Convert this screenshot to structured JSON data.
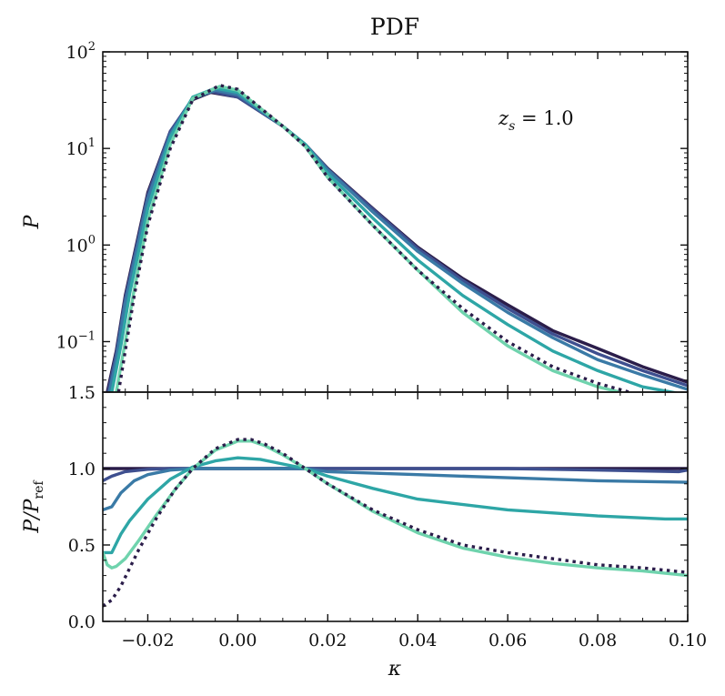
{
  "chart_data": [
    {
      "type": "line",
      "panel": "top",
      "title": "PDF",
      "ylabel": "P",
      "xlabel": "",
      "yscale": "log",
      "xlim": [
        -0.03,
        0.1
      ],
      "ylim": [
        0.03,
        100
      ],
      "yticks": [
        {
          "value": 0.1,
          "base": "10",
          "exp": "−1"
        },
        {
          "value": 1,
          "base": "10",
          "exp": "0"
        },
        {
          "value": 10,
          "base": "10",
          "exp": "1"
        },
        {
          "value": 100,
          "base": "10",
          "exp": "2"
        }
      ],
      "annotation": {
        "main": "z",
        "sub": "s",
        "rest": " = 1.0"
      },
      "series": [
        {
          "color": "#2b1d4a",
          "style": "solid",
          "x": [
            -0.029,
            -0.027,
            -0.025,
            -0.02,
            -0.015,
            -0.01,
            -0.006,
            0.0,
            0.01,
            0.015,
            0.02,
            0.03,
            0.04,
            0.05,
            0.06,
            0.07,
            0.08,
            0.09,
            0.1
          ],
          "y": [
            0.03,
            0.08,
            0.3,
            3.5,
            15,
            32,
            38,
            34,
            17,
            11,
            6.2,
            2.4,
            0.95,
            0.45,
            0.24,
            0.13,
            0.085,
            0.055,
            0.038
          ]
        },
        {
          "color": "#3e4f8f",
          "style": "solid",
          "x": [
            -0.0288,
            -0.027,
            -0.025,
            -0.02,
            -0.015,
            -0.01,
            -0.006,
            0.0,
            0.01,
            0.015,
            0.02,
            0.03,
            0.04,
            0.05,
            0.06,
            0.07,
            0.08,
            0.09,
            0.1
          ],
          "y": [
            0.03,
            0.075,
            0.28,
            3.3,
            15,
            33,
            39,
            34,
            17,
            11,
            6.1,
            2.35,
            0.92,
            0.43,
            0.22,
            0.12,
            0.075,
            0.05,
            0.035
          ]
        },
        {
          "color": "#3a7aa6",
          "style": "solid",
          "x": [
            -0.0285,
            -0.027,
            -0.025,
            -0.02,
            -0.015,
            -0.01,
            -0.005,
            0.0,
            0.01,
            0.015,
            0.02,
            0.03,
            0.04,
            0.05,
            0.06,
            0.07,
            0.08,
            0.09,
            0.1
          ],
          "y": [
            0.03,
            0.065,
            0.25,
            3.0,
            14,
            33,
            40,
            36,
            17,
            11,
            6.0,
            2.2,
            0.86,
            0.4,
            0.2,
            0.11,
            0.065,
            0.045,
            0.032
          ]
        },
        {
          "color": "#2ea6a6",
          "style": "solid",
          "x": [
            -0.028,
            -0.026,
            -0.024,
            -0.02,
            -0.015,
            -0.01,
            -0.005,
            0.0,
            0.01,
            0.015,
            0.02,
            0.03,
            0.04,
            0.05,
            0.06,
            0.07,
            0.08,
            0.09,
            0.1
          ],
          "y": [
            0.03,
            0.09,
            0.32,
            2.4,
            13,
            34,
            42,
            38,
            17,
            11,
            5.5,
            1.9,
            0.7,
            0.3,
            0.15,
            0.08,
            0.05,
            0.034,
            0.028
          ]
        },
        {
          "color": "#6fd3ad",
          "style": "solid",
          "x": [
            -0.027,
            -0.025,
            -0.023,
            -0.02,
            -0.015,
            -0.01,
            -0.004,
            0.0,
            0.01,
            0.015,
            0.02,
            0.03,
            0.04,
            0.05,
            0.06,
            0.07,
            0.08,
            0.085
          ],
          "y": [
            0.03,
            0.1,
            0.35,
            1.8,
            11,
            33,
            44,
            40,
            17,
            10.5,
            5.0,
            1.6,
            0.55,
            0.2,
            0.09,
            0.05,
            0.034,
            0.03
          ]
        },
        {
          "color": "#2b1d4a",
          "style": "dotted",
          "x": [
            -0.0265,
            -0.025,
            -0.023,
            -0.02,
            -0.015,
            -0.01,
            -0.004,
            0.0,
            0.01,
            0.015,
            0.02,
            0.03,
            0.04,
            0.05,
            0.06,
            0.07,
            0.08,
            0.087
          ],
          "y": [
            0.03,
            0.08,
            0.3,
            1.6,
            10,
            32,
            45,
            41,
            17,
            10.5,
            5.0,
            1.6,
            0.55,
            0.22,
            0.1,
            0.055,
            0.037,
            0.03
          ]
        }
      ]
    },
    {
      "type": "line",
      "panel": "bottom",
      "ylabel": "P/P",
      "ylabel_sub": "ref",
      "xlabel": "κ",
      "xlim": [
        -0.03,
        0.1
      ],
      "ylim": [
        0.0,
        1.5
      ],
      "xticks": [
        {
          "value": -0.02,
          "label": "−0.02"
        },
        {
          "value": 0.0,
          "label": "0.00"
        },
        {
          "value": 0.02,
          "label": "0.02"
        },
        {
          "value": 0.04,
          "label": "0.04"
        },
        {
          "value": 0.06,
          "label": "0.06"
        },
        {
          "value": 0.08,
          "label": "0.08"
        },
        {
          "value": 0.1,
          "label": "0.10"
        }
      ],
      "yticks": [
        {
          "value": 0.0,
          "label": "0.0"
        },
        {
          "value": 0.5,
          "label": "0.5"
        },
        {
          "value": 1.0,
          "label": "1.0"
        },
        {
          "value": 1.5,
          "label": "1.5"
        }
      ],
      "series": [
        {
          "color": "#2b1d4a",
          "style": "solid",
          "x": [
            -0.03,
            0.1
          ],
          "y": [
            1.0,
            1.0
          ]
        },
        {
          "color": "#3e4f8f",
          "style": "solid",
          "x": [
            -0.03,
            -0.028,
            -0.025,
            -0.02,
            -0.015,
            -0.01,
            0.0,
            0.01,
            0.02,
            0.04,
            0.06,
            0.08,
            0.098,
            0.1
          ],
          "y": [
            0.92,
            0.95,
            0.98,
            0.995,
            1.0,
            1.0,
            1.0,
            1.0,
            1.0,
            1.0,
            1.0,
            0.99,
            0.98,
            0.99
          ]
        },
        {
          "color": "#3a7aa6",
          "style": "solid",
          "x": [
            -0.03,
            -0.028,
            -0.026,
            -0.023,
            -0.02,
            -0.015,
            -0.01,
            0.0,
            0.01,
            0.015,
            0.02,
            0.04,
            0.06,
            0.08,
            0.1
          ],
          "y": [
            0.73,
            0.75,
            0.84,
            0.92,
            0.96,
            0.99,
            1.0,
            1.0,
            1.0,
            1.0,
            0.98,
            0.96,
            0.94,
            0.92,
            0.91
          ]
        },
        {
          "color": "#2ea6a6",
          "style": "solid",
          "x": [
            -0.03,
            -0.028,
            -0.026,
            -0.024,
            -0.02,
            -0.015,
            -0.01,
            -0.005,
            0.0,
            0.005,
            0.01,
            0.015,
            0.02,
            0.03,
            0.04,
            0.06,
            0.08,
            0.095,
            0.1
          ],
          "y": [
            0.45,
            0.45,
            0.57,
            0.66,
            0.8,
            0.93,
            1.01,
            1.05,
            1.07,
            1.06,
            1.03,
            1.0,
            0.95,
            0.87,
            0.8,
            0.73,
            0.69,
            0.67,
            0.67
          ]
        },
        {
          "color": "#6fd3ad",
          "style": "solid",
          "x": [
            -0.03,
            -0.029,
            -0.028,
            -0.027,
            -0.025,
            -0.022,
            -0.018,
            -0.014,
            -0.01,
            -0.005,
            0.0,
            0.003,
            0.006,
            0.01,
            0.015,
            0.02,
            0.03,
            0.04,
            0.05,
            0.06,
            0.07,
            0.08,
            0.09,
            0.1
          ],
          "y": [
            0.45,
            0.37,
            0.35,
            0.36,
            0.41,
            0.53,
            0.7,
            0.86,
            1.0,
            1.12,
            1.18,
            1.18,
            1.15,
            1.09,
            1.0,
            0.9,
            0.72,
            0.58,
            0.48,
            0.42,
            0.38,
            0.35,
            0.33,
            0.3
          ]
        },
        {
          "color": "#2b1d4a",
          "style": "dotted",
          "x": [
            -0.03,
            -0.028,
            -0.026,
            -0.024,
            -0.022,
            -0.018,
            -0.014,
            -0.01,
            -0.005,
            0.0,
            0.003,
            0.006,
            0.01,
            0.015,
            0.02,
            0.03,
            0.04,
            0.05,
            0.06,
            0.07,
            0.08,
            0.09,
            0.1
          ],
          "y": [
            0.1,
            0.14,
            0.23,
            0.35,
            0.47,
            0.68,
            0.86,
            1.0,
            1.13,
            1.19,
            1.19,
            1.16,
            1.1,
            1.0,
            0.9,
            0.73,
            0.6,
            0.5,
            0.45,
            0.41,
            0.37,
            0.35,
            0.32
          ]
        }
      ]
    }
  ]
}
